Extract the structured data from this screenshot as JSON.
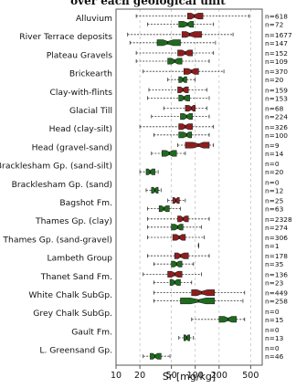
{
  "chart_data": {
    "type": "boxplot",
    "title": "over each geological unit",
    "xlabel": "Sr [mg/kg]",
    "xscale": "log",
    "xlim": [
      10,
      700
    ],
    "xticks": [
      10,
      20,
      50,
      100,
      200,
      500
    ],
    "xtick_labels": [
      "10",
      "20",
      "50",
      "100",
      "200",
      "500"
    ],
    "grid": "vertical dashed",
    "colors": {
      "red": "#8f1d1d",
      "green": "#1e6b1e"
    },
    "units": [
      {
        "name": "Alluvium",
        "red": {
          "n": "n=618",
          "whislo": 18,
          "q1": 80,
          "med": 97,
          "q3": 125,
          "whishi": 480
        },
        "green": {
          "n": "n=72",
          "whislo": 25,
          "q1": 62,
          "med": 80,
          "q3": 95,
          "whishi": 170
        }
      },
      {
        "name": "River Terrace deposits",
        "red": {
          "n": "n=1677",
          "whislo": 14,
          "q1": 68,
          "med": 85,
          "q3": 120,
          "whishi": 300
        },
        "green": {
          "n": "n=147",
          "whislo": 15,
          "q1": 33,
          "med": 45,
          "q3": 65,
          "whishi": 180
        }
      },
      {
        "name": "Plateau Gravels",
        "red": {
          "n": "n=152",
          "whislo": 18,
          "q1": 60,
          "med": 75,
          "q3": 92,
          "whishi": 170
        },
        "green": {
          "n": "n=109",
          "whislo": 18,
          "q1": 45,
          "med": 55,
          "q3": 68,
          "whishi": 150
        }
      },
      {
        "name": "Brickearth",
        "red": {
          "n": "n=370",
          "whislo": 22,
          "q1": 72,
          "med": 90,
          "q3": 110,
          "whishi": 230
        },
        "green": {
          "n": "n=20",
          "whislo": 45,
          "q1": 62,
          "med": 70,
          "q3": 78,
          "whishi": 100
        }
      },
      {
        "name": "Clay-with-flints",
        "red": {
          "n": "n=159",
          "whislo": 26,
          "q1": 60,
          "med": 70,
          "q3": 82,
          "whishi": 140
        },
        "green": {
          "n": "n=153",
          "whislo": 25,
          "q1": 62,
          "med": 72,
          "q3": 85,
          "whishi": 150
        }
      },
      {
        "name": "Glacial Till",
        "red": {
          "n": "n=68",
          "whislo": 40,
          "q1": 75,
          "med": 90,
          "q3": 100,
          "whishi": 140
        },
        "green": {
          "n": "n=224",
          "whislo": 28,
          "q1": 65,
          "med": 78,
          "q3": 92,
          "whishi": 150
        }
      },
      {
        "name": "Head (clay-silt)",
        "red": {
          "n": "n=326",
          "whislo": 20,
          "q1": 62,
          "med": 75,
          "q3": 92,
          "whishi": 170
        },
        "green": {
          "n": "n=100",
          "whislo": 30,
          "q1": 62,
          "med": 78,
          "q3": 90,
          "whishi": 150
        }
      },
      {
        "name": "Head (gravel-sand)",
        "red": {
          "n": "n=9",
          "whislo": 60,
          "q1": 75,
          "med": 110,
          "q3": 150,
          "whishi": 170
        },
        "green": {
          "n": "n=14",
          "whislo": 28,
          "q1": 38,
          "med": 47,
          "q3": 58,
          "whishi": 75
        }
      },
      {
        "name": "Bracklesham Gp. (sand-silt)",
        "red": {
          "n": "n=0"
        },
        "green": {
          "n": "n=20",
          "whislo": 20,
          "q1": 24,
          "med": 27,
          "q3": 31,
          "whishi": 34
        }
      },
      {
        "name": "Bracklesham Gp. (sand)",
        "red": {
          "n": "n=0"
        },
        "green": {
          "n": "n=12",
          "whislo": 24,
          "q1": 28,
          "med": 31,
          "q3": 34,
          "whishi": 37
        }
      },
      {
        "name": "Bagshot Fm.",
        "red": {
          "n": "n=25",
          "whislo": 45,
          "q1": 52,
          "med": 57,
          "q3": 63,
          "whishi": 75
        },
        "green": {
          "n": "n=63",
          "whislo": 25,
          "q1": 35,
          "med": 40,
          "q3": 47,
          "whishi": 65
        }
      },
      {
        "name": "Thames Gp. (clay)",
        "red": {
          "n": "n=2328",
          "whislo": 25,
          "q1": 60,
          "med": 70,
          "q3": 82,
          "whishi": 150
        },
        "green": {
          "n": "n=274",
          "whislo": 25,
          "q1": 50,
          "med": 60,
          "q3": 70,
          "whishi": 120
        }
      },
      {
        "name": "Thames Gp. (sand-gravel)",
        "red": {
          "n": "n=306",
          "whislo": 25,
          "q1": 52,
          "med": 63,
          "q3": 75,
          "whishi": 130
        },
        "green": {
          "n": "n=1",
          "whislo": 110,
          "q1": 110,
          "med": 110,
          "q3": 110,
          "whishi": 110
        }
      },
      {
        "name": "Lambeth Group",
        "red": {
          "n": "n=178",
          "whislo": 25,
          "q1": 55,
          "med": 65,
          "q3": 82,
          "whishi": 150
        },
        "green": {
          "n": "n=35",
          "whislo": 30,
          "q1": 50,
          "med": 58,
          "q3": 68,
          "whishi": 95
        }
      },
      {
        "name": "Thanet Sand Fm.",
        "red": {
          "n": "n=136",
          "whislo": 22,
          "q1": 45,
          "med": 55,
          "q3": 68,
          "whishi": 120
        },
        "green": {
          "n": "n=23",
          "whislo": 30,
          "q1": 48,
          "med": 55,
          "q3": 65,
          "whishi": 90
        }
      },
      {
        "name": "White Chalk SubGp.",
        "red": {
          "n": "n=449",
          "whislo": 30,
          "q1": 90,
          "med": 120,
          "q3": 175,
          "whishi": 420
        },
        "green": {
          "n": "n=258",
          "whislo": 30,
          "q1": 65,
          "med": 110,
          "q3": 175,
          "whishi": 400
        }
      },
      {
        "name": "Grey Chalk SubGp.",
        "red": {
          "n": "n=0"
        },
        "green": {
          "n": "n=15",
          "whislo": 90,
          "q1": 200,
          "med": 260,
          "q3": 330,
          "whishi": 420
        }
      },
      {
        "name": "Gault Fm.",
        "red": {
          "n": "n=0"
        },
        "green": {
          "n": "n=13",
          "whislo": 62,
          "q1": 72,
          "med": 78,
          "q3": 85,
          "whishi": 95
        }
      },
      {
        "name": "L. Greensand Gp.",
        "red": {
          "n": "n=0"
        },
        "green": {
          "n": "n=46",
          "whislo": 22,
          "q1": 27,
          "med": 31,
          "q3": 37,
          "whishi": 48
        }
      }
    ]
  }
}
